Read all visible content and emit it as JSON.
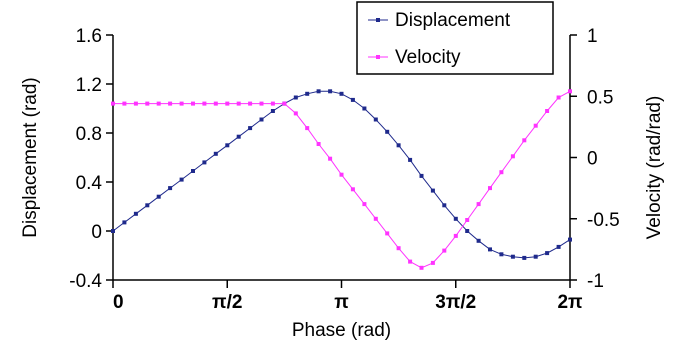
{
  "chart_data": {
    "type": "line",
    "title": "",
    "xlabel": "Phase (rad)",
    "ylabel_left": "Displacement (rad)",
    "ylabel_right": "Velocity (rad/rad)",
    "xlim": [
      0,
      6.2832
    ],
    "ylim_left": [
      -0.4,
      1.6
    ],
    "ylim_right": [
      -1,
      1
    ],
    "x_ticks": [
      0,
      1.5708,
      3.1416,
      4.7124,
      6.2832
    ],
    "x_tick_labels": [
      "0",
      "π/2",
      "π",
      "3π/2",
      "2π"
    ],
    "y_left_ticks": [
      -0.4,
      0,
      0.4,
      0.8,
      1.2,
      1.6
    ],
    "y_left_tick_labels": [
      "-0.4",
      "0",
      "0.4",
      "0.8",
      "1.2",
      "1.6"
    ],
    "y_right_ticks": [
      -1,
      -0.5,
      0,
      0.5,
      1
    ],
    "y_right_tick_labels": [
      "-1",
      "-0.5",
      "0",
      "0.5",
      "1"
    ],
    "grid": false,
    "legend_position": "top-right",
    "x": [
      0,
      0.1571,
      0.3142,
      0.4712,
      0.6283,
      0.7854,
      0.9425,
      1.0996,
      1.2566,
      1.4137,
      1.5708,
      1.7279,
      1.885,
      2.042,
      2.1991,
      2.3562,
      2.5133,
      2.6704,
      2.8274,
      2.9845,
      3.1416,
      3.2987,
      3.4558,
      3.6128,
      3.7699,
      3.927,
      4.0841,
      4.2412,
      4.3982,
      4.5553,
      4.7124,
      4.8695,
      5.0265,
      5.1836,
      5.3407,
      5.4978,
      5.6549,
      5.8119,
      5.969,
      6.1261,
      6.2832
    ],
    "series": [
      {
        "name": "Displacement",
        "axis": "left",
        "color": "#1f2a8c",
        "marker": "square",
        "values": [
          0.0,
          0.07,
          0.14,
          0.21,
          0.28,
          0.35,
          0.42,
          0.49,
          0.56,
          0.63,
          0.7,
          0.77,
          0.84,
          0.91,
          0.98,
          1.04,
          1.09,
          1.12,
          1.14,
          1.14,
          1.12,
          1.07,
          1.0,
          0.91,
          0.81,
          0.7,
          0.58,
          0.45,
          0.33,
          0.21,
          0.1,
          0.0,
          -0.08,
          -0.15,
          -0.19,
          -0.21,
          -0.22,
          -0.21,
          -0.18,
          -0.13,
          -0.07
        ]
      },
      {
        "name": "Velocity",
        "axis": "right",
        "color": "#ff33ff",
        "marker": "square",
        "values": [
          0.44,
          0.44,
          0.44,
          0.44,
          0.44,
          0.44,
          0.44,
          0.44,
          0.44,
          0.44,
          0.44,
          0.44,
          0.44,
          0.44,
          0.44,
          0.44,
          0.36,
          0.24,
          0.11,
          -0.01,
          -0.14,
          -0.26,
          -0.38,
          -0.5,
          -0.62,
          -0.74,
          -0.85,
          -0.9,
          -0.86,
          -0.76,
          -0.64,
          -0.51,
          -0.38,
          -0.25,
          -0.12,
          0.01,
          0.14,
          0.26,
          0.38,
          0.49,
          0.54
        ]
      }
    ]
  }
}
